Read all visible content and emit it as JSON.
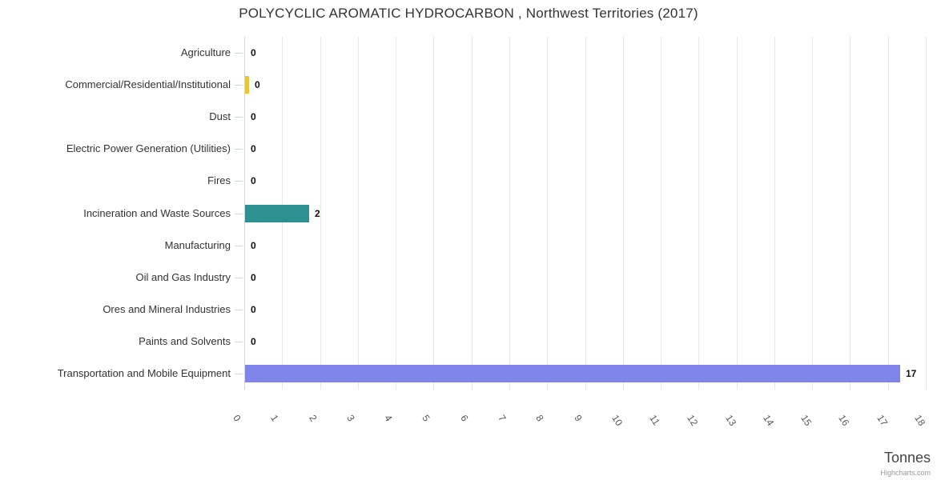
{
  "chart": {
    "title": "POLYCYCLIC AROMATIC HYDROCARBON , Northwest Territories (2017)",
    "axis_title": "Tonnes",
    "credits": "Highcharts.com"
  },
  "colors": {
    "grid": "#e6e6e6",
    "axis_line": "#ccd6eb",
    "title_text": "#333333",
    "label_text": "#333333",
    "tick_text": "#555555"
  },
  "chart_data": {
    "type": "bar",
    "orientation": "horizontal",
    "title": "POLYCYCLIC AROMATIC HYDROCARBON , Northwest Territories (2017)",
    "xlabel": "Tonnes",
    "xlim": [
      0,
      18
    ],
    "x_ticks": [
      "0",
      "1",
      "2",
      "3",
      "4",
      "5",
      "6",
      "7",
      "8",
      "9",
      "10",
      "11",
      "12",
      "13",
      "14",
      "15",
      "16",
      "17",
      "18"
    ],
    "grid": true,
    "legend": false,
    "categories": [
      "Agriculture",
      "Commercial/Residential/Institutional",
      "Dust",
      "Electric Power Generation (Utilities)",
      "Fires",
      "Incineration and Waste Sources",
      "Manufacturing",
      "Oil and Gas Industry",
      "Ores and Mineral Industries",
      "Paints and Solvents",
      "Transportation and Mobile Equipment"
    ],
    "values": [
      0,
      0.1,
      0,
      0,
      0,
      1.7,
      0,
      0,
      0,
      0,
      17.3
    ],
    "value_labels": [
      "0",
      "0",
      "0",
      "0",
      "0",
      "2",
      "0",
      "0",
      "0",
      "0",
      "17"
    ],
    "bar_colors": [
      null,
      "#edc33a",
      null,
      null,
      null,
      "#2b908f",
      null,
      null,
      null,
      null,
      "#8085e9"
    ]
  }
}
